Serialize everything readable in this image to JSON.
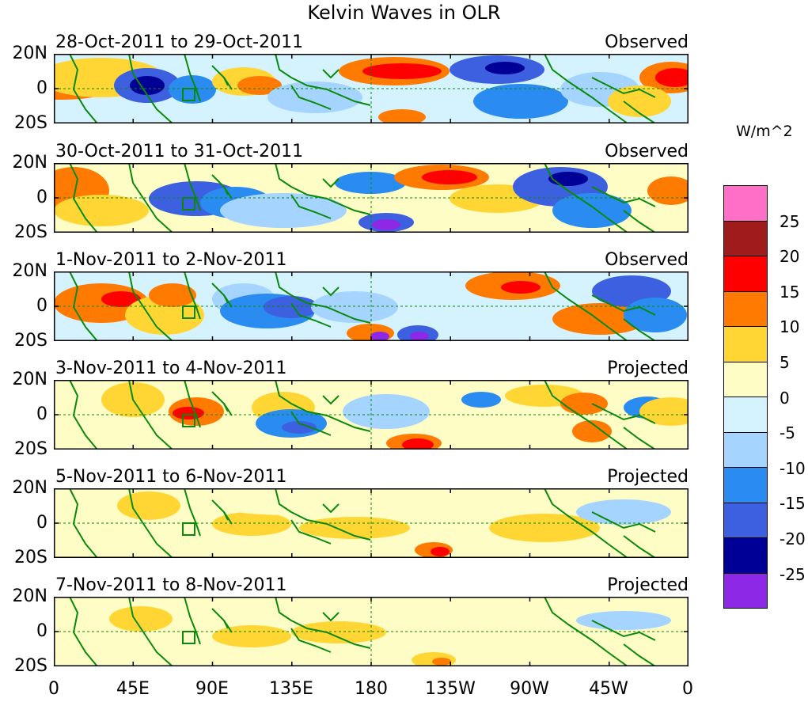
{
  "title": "Kelvin Waves in OLR",
  "panels": [
    {
      "date_range": "28-Oct-2011 to 29-Oct-2011",
      "type": "Observed"
    },
    {
      "date_range": "30-Oct-2011 to 31-Oct-2011",
      "type": "Observed"
    },
    {
      "date_range": "1-Nov-2011 to 2-Nov-2011",
      "type": "Observed"
    },
    {
      "date_range": "3-Nov-2011 to 4-Nov-2011",
      "type": "Projected"
    },
    {
      "date_range": "5-Nov-2011 to 6-Nov-2011",
      "type": "Projected"
    },
    {
      "date_range": "7-Nov-2011 to 8-Nov-2011",
      "type": "Projected"
    }
  ],
  "lat_labels": [
    "20N",
    "0",
    "20S"
  ],
  "lon_labels": [
    "0",
    "45E",
    "90E",
    "135E",
    "180",
    "135W",
    "90W",
    "45W",
    "0"
  ],
  "colorbar": {
    "units": "W/m^2",
    "ticks": [
      "25",
      "20",
      "15",
      "10",
      "5",
      "0",
      "-5",
      "-10",
      "-15",
      "-20",
      "-25"
    ],
    "colors": [
      "#ff6ec7",
      "#a01c1c",
      "#ff0000",
      "#ff7a00",
      "#ffd633",
      "#fffdc6",
      "#d4f3ff",
      "#a4d4ff",
      "#2a8cf0",
      "#3c60e0",
      "#000096",
      "#8c28e6"
    ]
  },
  "colors": {
    "land": "#0a8a0a",
    "equator": "#0a8a0a"
  }
}
